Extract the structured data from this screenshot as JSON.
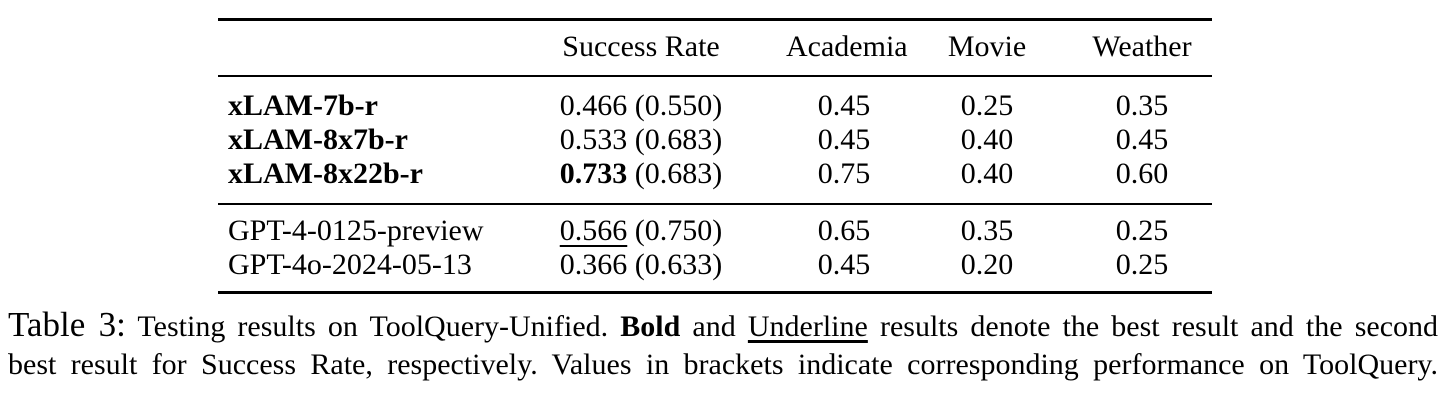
{
  "table": {
    "header": {
      "model": "",
      "success_rate": "Success Rate",
      "academia": "Academia",
      "movie": "Movie",
      "weather": "Weather"
    },
    "rows": [
      {
        "model": "xLAM-7b-r",
        "success_rate": "0.466",
        "success_rate_bracket": "(0.550)",
        "academia": "0.45",
        "movie": "0.25",
        "weather": "0.35",
        "model_style": "bold",
        "success_rate_style": "normal"
      },
      {
        "model": "xLAM-8x7b-r",
        "success_rate": "0.533",
        "success_rate_bracket": "(0.683)",
        "academia": "0.45",
        "movie": "0.40",
        "weather": "0.45",
        "model_style": "bold",
        "success_rate_style": "normal"
      },
      {
        "model": "xLAM-8x22b-r",
        "success_rate": "0.733",
        "success_rate_bracket": "(0.683)",
        "academia": "0.75",
        "movie": "0.40",
        "weather": "0.60",
        "model_style": "bold",
        "success_rate_style": "bold"
      },
      {
        "model": "GPT-4-0125-preview",
        "success_rate": "0.566",
        "success_rate_bracket": "(0.750)",
        "academia": "0.65",
        "movie": "0.35",
        "weather": "0.25",
        "model_style": "normal",
        "success_rate_style": "underline"
      },
      {
        "model": "GPT-4o-2024-05-13",
        "success_rate": "0.366",
        "success_rate_bracket": "(0.633)",
        "academia": "0.45",
        "movie": "0.20",
        "weather": "0.25",
        "model_style": "normal",
        "success_rate_style": "normal"
      }
    ]
  },
  "caption": {
    "label": "Table 3:",
    "line1_part1": "Testing results on ToolQuery-Unified.",
    "line1_bold": "Bold",
    "line1_part2": "and",
    "line1_underline": "Underline",
    "line1_part3": "results denote the best result and the second",
    "line2": "best result for Success Rate, respectively. Values in brackets indicate corresponding performance on ToolQuery."
  },
  "colors": {
    "text": "#000000",
    "background": "#ffffff"
  }
}
